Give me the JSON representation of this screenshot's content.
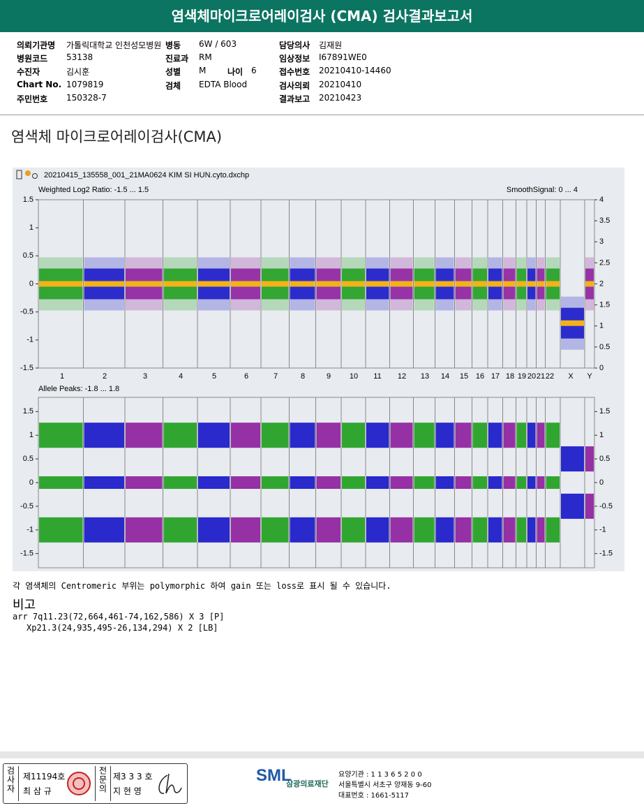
{
  "header": {
    "title": "염색체마이크로어레이검사 (CMA) 검사결과보고서"
  },
  "info": [
    {
      "label": "의뢰기관명",
      "value": "가톨릭대학교 인천성모병원"
    },
    {
      "label": "병동",
      "value": "6W / 603"
    },
    {
      "label": "담당의사",
      "value": "김재원"
    },
    {
      "label": "병원코드",
      "value": "53138"
    },
    {
      "label": "진료과",
      "value": "RM"
    },
    {
      "label": "임상정보",
      "value": "I67891WE0"
    },
    {
      "label": "수진자",
      "value": "김시훈"
    },
    {
      "label": "성별",
      "value": "M"
    },
    {
      "label": "나이",
      "value": "6"
    },
    {
      "label": "접수번호",
      "value": "20210410-14460"
    },
    {
      "label": "Chart No.",
      "value": "1079819"
    },
    {
      "label": "검체",
      "value": "EDTA Blood"
    },
    {
      "label": "검사의뢰",
      "value": "20210410"
    },
    {
      "label": "주민번호",
      "value": "150328-7"
    },
    {
      "label": "결과보고",
      "value": "20210423"
    }
  ],
  "section_title": "염색체 마이크로어레이검사(CMA)",
  "plot": {
    "type": "scatter",
    "file": "20210415_135558_001_21MA0624 KIM SI HUN.cyto.dxchp",
    "upper_label": "Weighted Log2 Ratio: -1.5 ... 1.5",
    "upper_right_label": "SmoothSignal: 0 ... 4",
    "ylim": [
      -1.5,
      1.5
    ],
    "yticks": [
      1.5,
      1,
      0.5,
      0,
      -0.5,
      -1,
      -1.5
    ],
    "y2lim": [
      0,
      4
    ],
    "y2ticks": [
      4,
      3.5,
      3,
      2.5,
      2,
      1.5,
      1,
      0.5,
      0
    ],
    "chromosomes": [
      "1",
      "2",
      "3",
      "4",
      "5",
      "6",
      "7",
      "8",
      "9",
      "10",
      "11",
      "12",
      "13",
      "14",
      "15",
      "16",
      "17",
      "18",
      "19",
      "20",
      "21",
      "22",
      "X",
      "Y"
    ],
    "lower_label": "Allele Peaks: -1.8 ... 1.8",
    "lower_ylim": [
      -1.8,
      1.8
    ],
    "lower_yticks": [
      1.5,
      1,
      0.5,
      0,
      -0.5,
      -1,
      -1.5
    ]
  },
  "note": "각 염색체의 Centromeric 부위는 polymorphic 하여 gain 또는 loss로 표시 될 수 있습니다.",
  "remarks": {
    "title": "비고",
    "lines": [
      "arr 7q11.23(72,664,461-74,162,586) X 3 [P]",
      "Xp21.3(24,935,495-26,134,294) X 2 [LB]"
    ]
  },
  "footer": {
    "examiner_label": "검사자",
    "examiner_no": "제11194호",
    "examiner_name": "최 삼 규",
    "specialist_label": "전문의",
    "specialist_no": "제3 3 3 호",
    "specialist_name": "지 현 영",
    "logo": "SML",
    "org": "삼광의료재단",
    "lines": [
      "요양기관 : 1 1 3 6 5 2 0 0",
      "서울특별시 서초구 양재동 9-60",
      "대표번호 : 1661-5117"
    ]
  }
}
